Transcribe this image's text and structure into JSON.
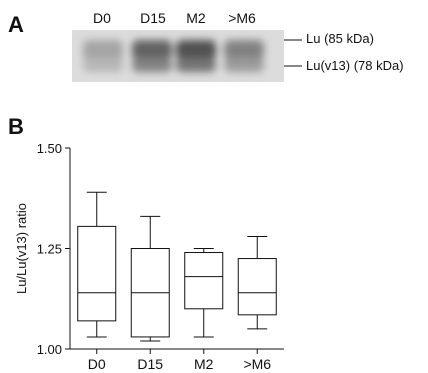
{
  "panel_a": {
    "letter": "A",
    "lanes": [
      "D0",
      "D15",
      "M2",
      ">M6"
    ],
    "band_labels": [
      "Lu (85 kDa)",
      "Lu(v13) (78 kDa)"
    ],
    "band_intensity": [
      0.25,
      0.72,
      0.85,
      0.5
    ]
  },
  "panel_b": {
    "letter": "B"
  },
  "chart_data": {
    "type": "box",
    "title": "",
    "xlabel": "",
    "ylabel": "Lu/Lu(v13) ratio",
    "ylim": [
      1.0,
      1.5
    ],
    "yticks": [
      "1.00",
      "1.25",
      "1.50"
    ],
    "ytick_values": [
      1.0,
      1.25,
      1.5
    ],
    "categories": [
      "D0",
      "D15",
      "M2",
      ">M6"
    ],
    "boxes": [
      {
        "whisker_low": 1.03,
        "q1": 1.07,
        "median": 1.14,
        "q3": 1.305,
        "whisker_high": 1.39
      },
      {
        "whisker_low": 1.02,
        "q1": 1.03,
        "median": 1.14,
        "q3": 1.25,
        "whisker_high": 1.33
      },
      {
        "whisker_low": 1.03,
        "q1": 1.1,
        "median": 1.18,
        "q3": 1.24,
        "whisker_high": 1.25
      },
      {
        "whisker_low": 1.05,
        "q1": 1.085,
        "median": 1.14,
        "q3": 1.225,
        "whisker_high": 1.28
      }
    ]
  }
}
